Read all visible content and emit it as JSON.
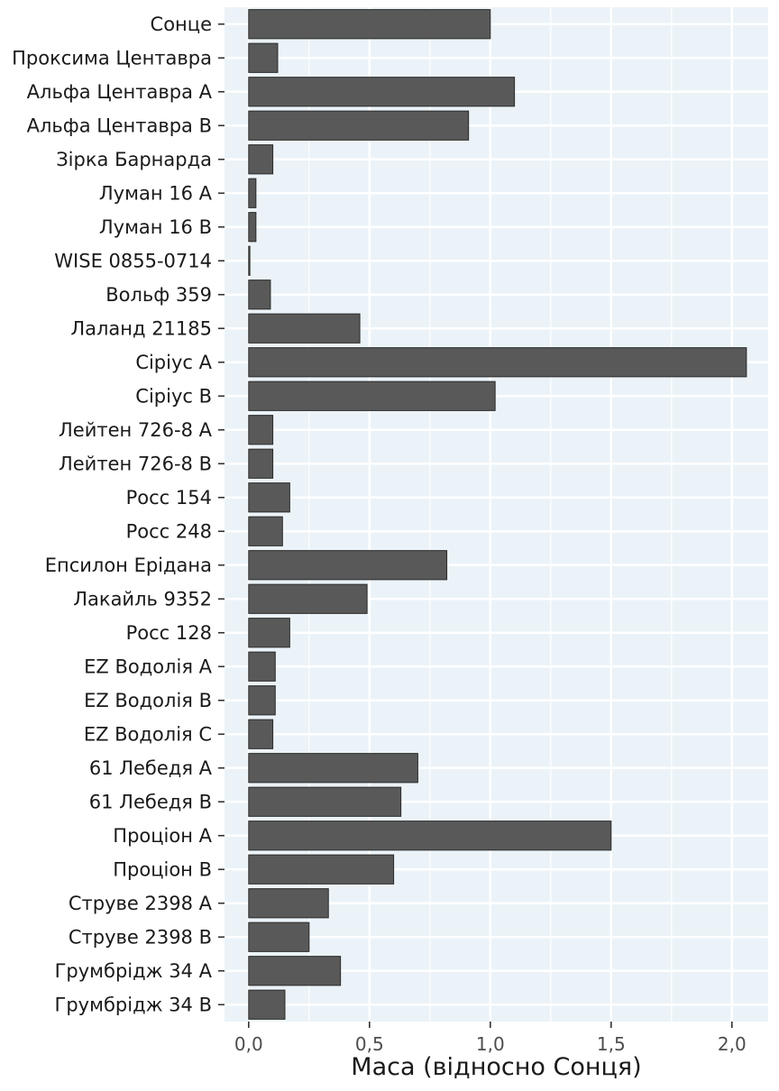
{
  "chart_data": {
    "type": "bar",
    "orientation": "horizontal",
    "title": "",
    "xlabel": "Маса (відносно Сонця)",
    "ylabel": "",
    "xlim": [
      -0.1,
      2.15
    ],
    "x_ticks": [
      0.0,
      0.5,
      1.0,
      1.5,
      2.0
    ],
    "x_tick_labels": [
      "0,0",
      "0,5",
      "1,0",
      "1,5",
      "2,0"
    ],
    "grid": true,
    "colors": {
      "panel": "#EBF3F8",
      "grid": "#FFFFFF",
      "bar": "#595959",
      "bar_edge": "#2b2b2b"
    },
    "categories": [
      "Сонце",
      "Проксима Центавра",
      "Альфа Центавра A",
      "Альфа Центавра B",
      "Зірка Барнарда",
      "Луман 16 A",
      "Луман 16 B",
      "WISE 0855-0714",
      "Вольф 359",
      "Лаланд 21185",
      "Сіріус A",
      "Сіріус B",
      "Лейтен 726-8 A",
      "Лейтен 726-8 B",
      "Росс 154",
      "Росс 248",
      "Епсилон Ерідана",
      "Лакайль 9352",
      "Росс 128",
      "EZ Водолія A",
      "EZ Водолія B",
      "EZ Водолія C",
      "61 Лебедя A",
      "61 Лебедя B",
      "Проціон A",
      "Проціон B",
      "Струве 2398 A",
      "Струве 2398 B",
      "Грумбрідж 34 A",
      "Грумбрідж 34 B"
    ],
    "values": [
      1.0,
      0.12,
      1.1,
      0.91,
      0.1,
      0.03,
      0.03,
      0.005,
      0.09,
      0.46,
      2.06,
      1.02,
      0.1,
      0.1,
      0.17,
      0.14,
      0.82,
      0.49,
      0.17,
      0.11,
      0.11,
      0.1,
      0.7,
      0.63,
      1.5,
      0.6,
      0.33,
      0.25,
      0.38,
      0.15
    ]
  }
}
